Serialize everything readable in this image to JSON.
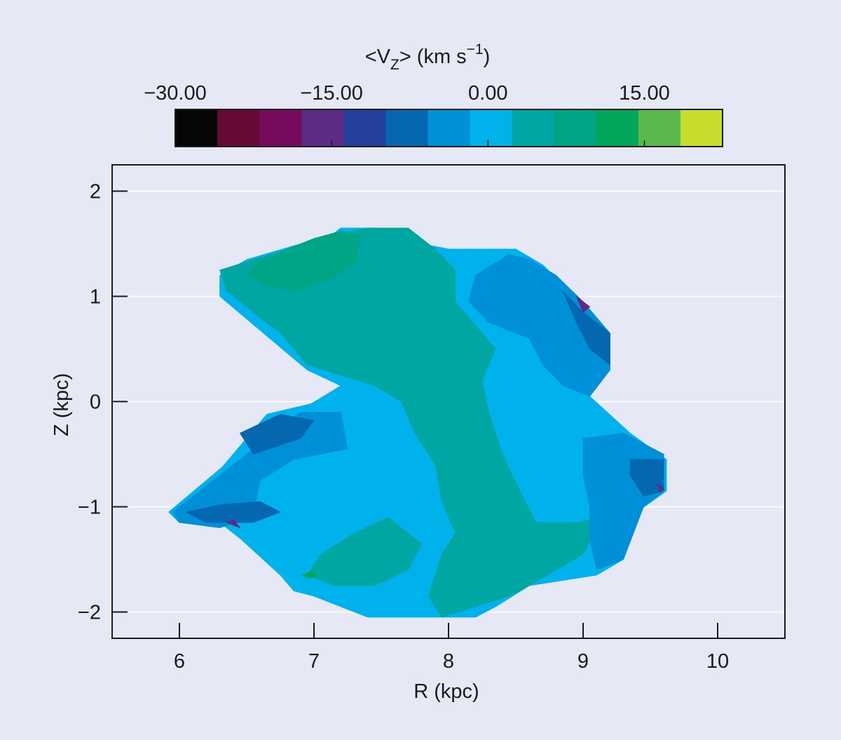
{
  "chart_data": {
    "type": "heatmap",
    "colorbar": {
      "title": "<V",
      "title_sub": "Z",
      "title_rest": "> (km s",
      "title_sup": "−1",
      "title_close": ")",
      "vmin": -30,
      "vmax": 22.5,
      "bin_width": 4.375,
      "tick_values": [
        -30,
        -15,
        0,
        15
      ],
      "tick_labels": [
        "−30.00",
        "−15.00",
        "0.00",
        "15.00"
      ],
      "colors": [
        "#060606",
        "#640a34",
        "#760a5e",
        "#5d2a86",
        "#25409b",
        "#0467b0",
        "#0090d8",
        "#00b2ec",
        "#00a7a2",
        "#00a585",
        "#00a65a",
        "#5bb84a",
        "#c7dc2c"
      ]
    },
    "xaxis": {
      "label": "R (kpc)",
      "range": [
        5.5,
        10.5
      ],
      "ticks": [
        6,
        7,
        8,
        9,
        10
      ],
      "tick_labels": [
        "6",
        "7",
        "8",
        "9",
        "10"
      ]
    },
    "yaxis": {
      "label": "Z (kpc)",
      "range": [
        -2.25,
        2.25
      ],
      "ticks": [
        -2,
        -1,
        0,
        1,
        2
      ],
      "tick_labels": [
        "−2",
        "−1",
        "0",
        "1",
        "2"
      ]
    },
    "grid": true,
    "regions": [
      {
        "level": 7,
        "points": [
          [
            5.92,
            -1.05
          ],
          [
            6.32,
            -0.62
          ],
          [
            6.65,
            -0.12
          ],
          [
            6.98,
            -0.02
          ],
          [
            7.2,
            0.15
          ],
          [
            6.95,
            0.3
          ],
          [
            6.3,
            1.0
          ],
          [
            6.3,
            1.2
          ],
          [
            6.5,
            1.35
          ],
          [
            6.9,
            1.5
          ],
          [
            7.1,
            1.55
          ],
          [
            7.2,
            1.65
          ],
          [
            7.45,
            1.65
          ],
          [
            7.8,
            1.5
          ],
          [
            8.0,
            1.45
          ],
          [
            8.5,
            1.45
          ],
          [
            8.7,
            1.3
          ],
          [
            8.9,
            1.05
          ],
          [
            9.2,
            0.65
          ],
          [
            9.2,
            0.3
          ],
          [
            9.05,
            0.05
          ],
          [
            9.35,
            -0.3
          ],
          [
            9.62,
            -0.55
          ],
          [
            9.62,
            -0.85
          ],
          [
            9.4,
            -1.05
          ],
          [
            9.3,
            -1.5
          ],
          [
            9.1,
            -1.65
          ],
          [
            8.6,
            -1.75
          ],
          [
            8.35,
            -1.95
          ],
          [
            8.2,
            -2.05
          ],
          [
            7.4,
            -2.05
          ],
          [
            7.0,
            -1.85
          ],
          [
            6.85,
            -1.8
          ],
          [
            6.75,
            -1.65
          ],
          [
            6.45,
            -1.3
          ],
          [
            6.3,
            -1.15
          ],
          [
            6.0,
            -1.15
          ]
        ]
      },
      {
        "level": 8,
        "points": [
          [
            7.7,
            1.65
          ],
          [
            7.9,
            1.45
          ],
          [
            8.05,
            1.25
          ],
          [
            8.05,
            0.95
          ],
          [
            8.25,
            0.65
          ],
          [
            8.35,
            0.5
          ],
          [
            8.25,
            0.2
          ],
          [
            8.3,
            -0.1
          ],
          [
            8.4,
            -0.5
          ],
          [
            8.55,
            -0.9
          ],
          [
            8.65,
            -1.15
          ],
          [
            8.95,
            -1.15
          ],
          [
            9.15,
            -1.1
          ],
          [
            9.0,
            -1.45
          ],
          [
            8.8,
            -1.6
          ],
          [
            8.6,
            -1.75
          ],
          [
            8.45,
            -1.85
          ],
          [
            8.2,
            -1.95
          ],
          [
            7.95,
            -2.05
          ],
          [
            7.85,
            -1.85
          ],
          [
            7.95,
            -1.45
          ],
          [
            8.05,
            -1.25
          ],
          [
            7.95,
            -0.95
          ],
          [
            7.9,
            -0.6
          ],
          [
            7.75,
            -0.3
          ],
          [
            7.65,
            0.0
          ],
          [
            7.45,
            0.15
          ],
          [
            7.2,
            0.25
          ],
          [
            6.95,
            0.35
          ],
          [
            6.75,
            0.65
          ],
          [
            6.5,
            0.9
          ],
          [
            6.35,
            1.05
          ],
          [
            6.3,
            1.25
          ],
          [
            6.55,
            1.35
          ],
          [
            6.95,
            1.5
          ],
          [
            7.2,
            1.6
          ],
          [
            7.4,
            1.65
          ]
        ]
      },
      {
        "level": 8,
        "points": [
          [
            7.05,
            -1.45
          ],
          [
            7.3,
            -1.25
          ],
          [
            7.55,
            -1.1
          ],
          [
            7.8,
            -1.35
          ],
          [
            7.7,
            -1.6
          ],
          [
            7.45,
            -1.75
          ],
          [
            7.15,
            -1.75
          ],
          [
            6.95,
            -1.65
          ]
        ]
      },
      {
        "level": 9,
        "points": [
          [
            6.55,
            1.3
          ],
          [
            6.8,
            1.45
          ],
          [
            7.0,
            1.55
          ],
          [
            7.2,
            1.62
          ],
          [
            7.35,
            1.58
          ],
          [
            7.3,
            1.3
          ],
          [
            7.1,
            1.15
          ],
          [
            6.85,
            1.05
          ],
          [
            6.65,
            1.1
          ],
          [
            6.5,
            1.2
          ]
        ]
      },
      {
        "level": 10,
        "points": [
          [
            6.97,
            -1.62
          ],
          [
            7.03,
            -1.65
          ],
          [
            6.97,
            -1.68
          ],
          [
            6.91,
            -1.65
          ]
        ]
      },
      {
        "level": 6,
        "points": [
          [
            8.45,
            1.4
          ],
          [
            8.2,
            1.2
          ],
          [
            8.15,
            0.95
          ],
          [
            8.3,
            0.75
          ],
          [
            8.6,
            0.6
          ],
          [
            8.7,
            0.35
          ],
          [
            8.85,
            0.15
          ],
          [
            9.05,
            0.05
          ],
          [
            9.2,
            0.3
          ],
          [
            9.2,
            0.65
          ],
          [
            9.0,
            0.95
          ],
          [
            8.8,
            1.2
          ],
          [
            8.6,
            1.35
          ]
        ]
      },
      {
        "level": 6,
        "points": [
          [
            9.0,
            -0.35
          ],
          [
            9.3,
            -0.3
          ],
          [
            9.6,
            -0.5
          ],
          [
            9.6,
            -0.85
          ],
          [
            9.45,
            -1.0
          ],
          [
            9.3,
            -1.5
          ],
          [
            9.1,
            -1.6
          ],
          [
            9.05,
            -1.3
          ],
          [
            9.05,
            -1.0
          ],
          [
            9.0,
            -0.7
          ]
        ]
      },
      {
        "level": 6,
        "points": [
          [
            5.95,
            -1.05
          ],
          [
            6.25,
            -0.75
          ],
          [
            6.55,
            -0.45
          ],
          [
            6.9,
            -0.1
          ],
          [
            7.2,
            -0.1
          ],
          [
            7.25,
            -0.45
          ],
          [
            6.85,
            -0.55
          ],
          [
            6.6,
            -0.75
          ],
          [
            6.55,
            -1.1
          ],
          [
            6.3,
            -1.2
          ],
          [
            6.0,
            -1.15
          ]
        ]
      },
      {
        "level": 5,
        "points": [
          [
            8.85,
            1.05
          ],
          [
            9.0,
            0.85
          ],
          [
            9.2,
            0.65
          ],
          [
            9.2,
            0.35
          ],
          [
            9.05,
            0.5
          ],
          [
            8.95,
            0.75
          ]
        ]
      },
      {
        "level": 5,
        "points": [
          [
            9.35,
            -0.55
          ],
          [
            9.6,
            -0.55
          ],
          [
            9.6,
            -0.85
          ],
          [
            9.45,
            -0.9
          ],
          [
            9.35,
            -0.7
          ]
        ]
      },
      {
        "level": 5,
        "points": [
          [
            6.45,
            -0.3
          ],
          [
            6.75,
            -0.12
          ],
          [
            7.0,
            -0.18
          ],
          [
            6.9,
            -0.35
          ],
          [
            6.55,
            -0.5
          ]
        ]
      },
      {
        "level": 5,
        "points": [
          [
            6.05,
            -1.05
          ],
          [
            6.3,
            -0.98
          ],
          [
            6.6,
            -0.95
          ],
          [
            6.75,
            -1.05
          ],
          [
            6.55,
            -1.15
          ],
          [
            6.2,
            -1.15
          ]
        ]
      },
      {
        "level": 3,
        "points": [
          [
            8.95,
            1.0
          ],
          [
            9.05,
            0.9
          ],
          [
            9.0,
            0.85
          ]
        ]
      },
      {
        "level": 3,
        "points": [
          [
            9.55,
            -0.78
          ],
          [
            9.6,
            -0.83
          ],
          [
            9.57,
            -0.86
          ]
        ]
      },
      {
        "level": 3,
        "points": [
          [
            6.35,
            -1.15
          ],
          [
            6.45,
            -1.2
          ],
          [
            6.4,
            -1.12
          ]
        ]
      }
    ]
  }
}
